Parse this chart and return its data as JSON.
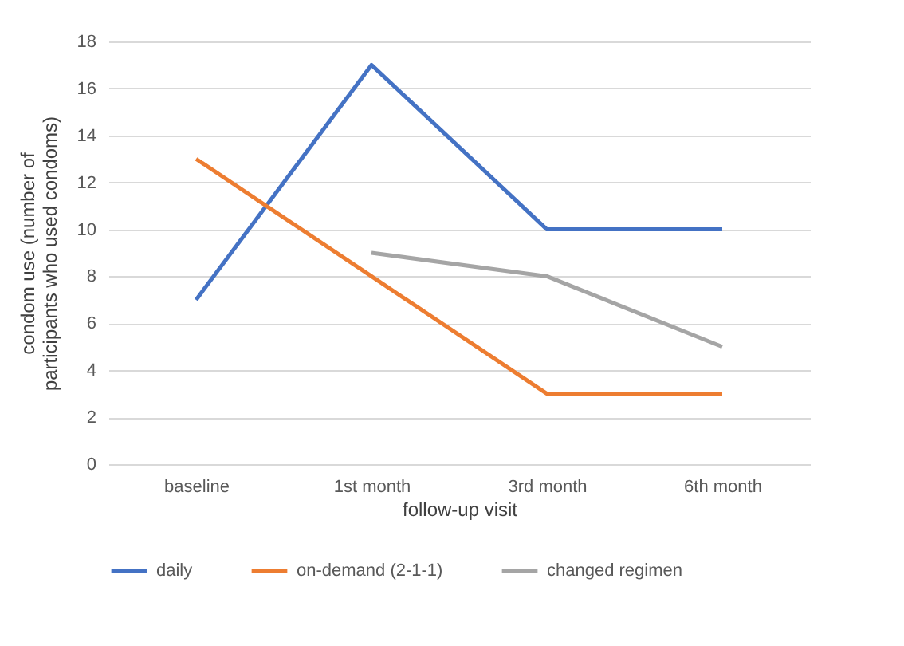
{
  "chart_data": {
    "type": "line",
    "xlabel": "follow-up visit",
    "ylabel": "condom use (number of participants who used condoms)",
    "categories": [
      "baseline",
      "1st month",
      "3rd month",
      "6th month"
    ],
    "series": [
      {
        "name": "daily",
        "color": "#4472c4",
        "values": [
          7,
          17,
          10,
          10
        ]
      },
      {
        "name": "on-demand (2-1-1)",
        "color": "#ed7d31",
        "values": [
          13,
          8,
          3,
          3
        ]
      },
      {
        "name": "changed regimen",
        "color": "#a5a5a5",
        "values": [
          null,
          9,
          8,
          5
        ]
      }
    ],
    "ylim": [
      0,
      18
    ],
    "yticks": [
      0,
      2,
      4,
      6,
      8,
      10,
      12,
      14,
      16,
      18
    ],
    "grid": "y",
    "legend": "bottom",
    "marker": "none",
    "line_style": "solid"
  }
}
